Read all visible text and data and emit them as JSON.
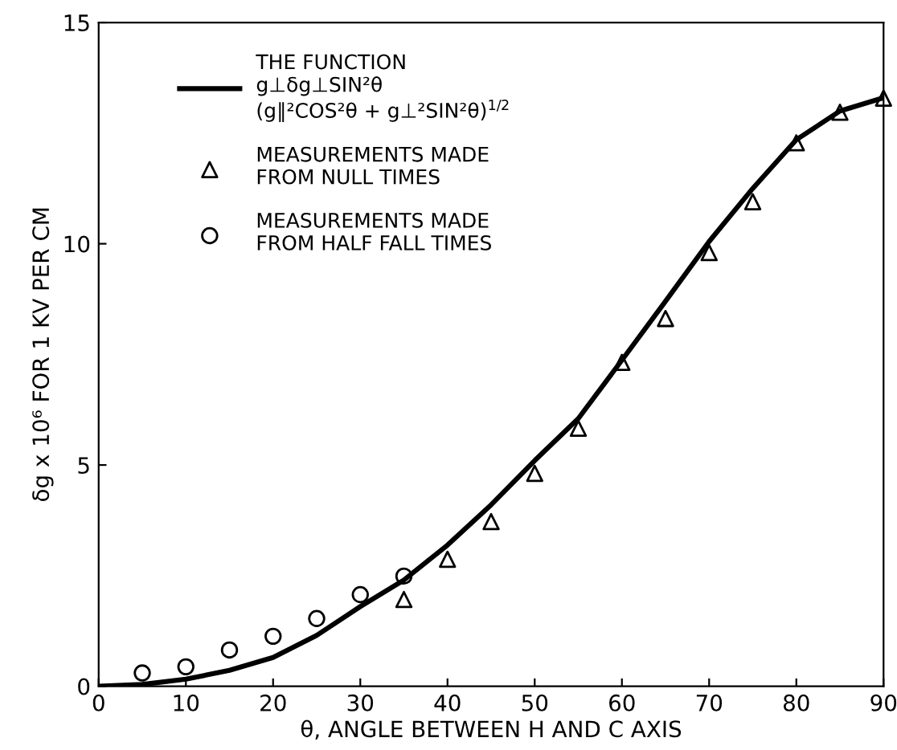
{
  "chart_data": {
    "type": "line",
    "xlabel": "θ, ANGLE BETWEEN H AND C AXIS",
    "ylabel": "δg x 10⁶ FOR 1 KV PER CM",
    "xlim": [
      0,
      90
    ],
    "ylim": [
      0,
      15
    ],
    "xticks": [
      0,
      10,
      20,
      30,
      40,
      50,
      60,
      70,
      80,
      90
    ],
    "yticks": [
      0,
      5,
      10,
      15
    ],
    "grid": false,
    "legend": "top left",
    "series": [
      {
        "name": "THE FUNCTION\ng⊥δg⊥SIN²θ\n(g∥²COS²θ + g⊥²SIN²θ)$^{1/2}$",
        "color": "#000000",
        "marker": "none",
        "line_style": "solid",
        "x": [
          0,
          5,
          10,
          15,
          20,
          25,
          30,
          35,
          40,
          45,
          50,
          55,
          60,
          65,
          70,
          75,
          80,
          85,
          90
        ],
        "values": [
          0,
          0.04,
          0.16,
          0.36,
          0.65,
          1.15,
          1.8,
          2.4,
          3.19,
          4.1,
          5.1,
          6.05,
          7.37,
          8.7,
          10.05,
          11.25,
          12.35,
          13.0,
          13.3
        ]
      },
      {
        "name": "MEASUREMENTS MADE\nFROM NULL TIMES",
        "type": "scatter",
        "color": "#000000",
        "marker": "triangle",
        "x": [
          35,
          40,
          45,
          50,
          55,
          60,
          65,
          70,
          75,
          80,
          85,
          90
        ],
        "values": [
          1.96,
          2.87,
          3.72,
          4.81,
          5.83,
          7.32,
          8.31,
          9.8,
          10.95,
          12.28,
          12.97,
          13.29
        ]
      },
      {
        "name": "MEASUREMENTS MADE\nFROM HALF FALL TIMES",
        "type": "scatter",
        "color": "#000000",
        "marker": "circle",
        "x": [
          5,
          10,
          15,
          20,
          25,
          30,
          35
        ],
        "values": [
          0.3,
          0.44,
          0.82,
          1.13,
          1.53,
          2.07,
          2.49
        ]
      }
    ]
  }
}
